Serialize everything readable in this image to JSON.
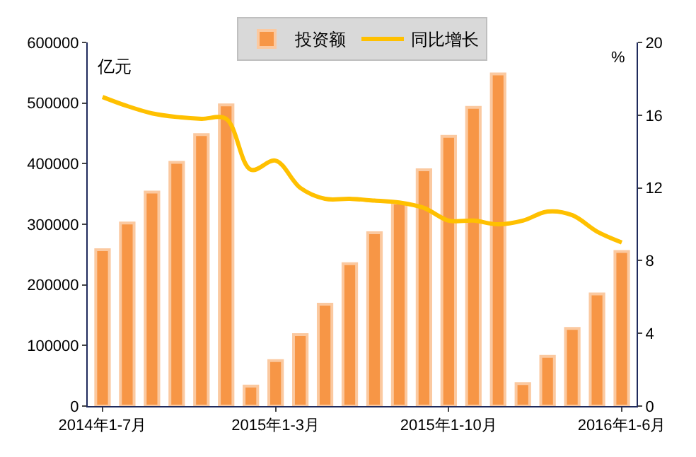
{
  "chart_data": {
    "type": "bar",
    "categories": [
      "2014年1-7月",
      null,
      null,
      null,
      null,
      null,
      null,
      "2015年1-3月",
      null,
      null,
      null,
      null,
      null,
      null,
      "2015年1-10月",
      null,
      null,
      null,
      null,
      null,
      null,
      "2016年1-6月"
    ],
    "series": [
      {
        "name": "投资额",
        "color": "#f79646",
        "values": [
          258000,
          302000,
          353000,
          402000,
          448000,
          497000,
          33000,
          75000,
          118000,
          168000,
          235000,
          286000,
          335000,
          390000,
          445000,
          493000,
          548000,
          37000,
          82000,
          128000,
          185000,
          255000
        ]
      },
      {
        "name": "同比增长",
        "type": "line",
        "axis": "y2",
        "color": "#ffc000",
        "values": [
          17.0,
          16.5,
          16.1,
          15.9,
          15.8,
          15.8,
          13.0,
          13.5,
          12.0,
          11.4,
          11.4,
          11.3,
          11.2,
          10.9,
          10.2,
          10.2,
          10.0,
          10.2,
          10.7,
          10.5,
          9.6,
          9.0
        ]
      }
    ],
    "ylabel": "亿元",
    "y2label": "%",
    "ylim": [
      0,
      600000
    ],
    "yticks": [
      0,
      100000,
      200000,
      300000,
      400000,
      500000,
      600000
    ],
    "y2lim": [
      0,
      20
    ],
    "y2ticks": [
      0,
      4,
      8,
      12,
      16,
      20
    ],
    "legend": "top",
    "marker": "none",
    "line_style": "solid"
  }
}
